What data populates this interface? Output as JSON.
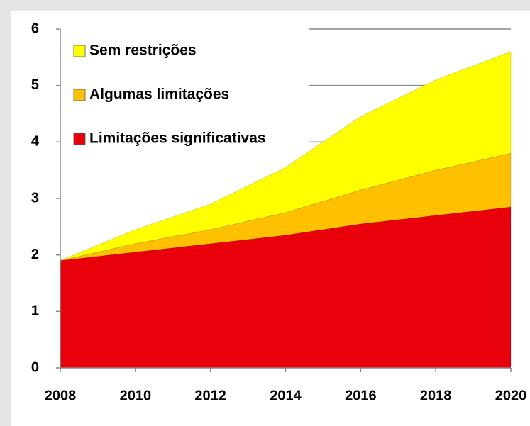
{
  "chart_data": {
    "type": "stacked_area",
    "x": [
      2008,
      2010,
      2012,
      2014,
      2016,
      2018,
      2020
    ],
    "xlim": [
      2008,
      2020
    ],
    "xticks": [
      2008,
      2010,
      2012,
      2014,
      2016,
      2018,
      2020
    ],
    "ylim": [
      0,
      6
    ],
    "yticks": [
      0,
      1,
      2,
      3,
      4,
      5,
      6
    ],
    "grid": true,
    "legend": "upper left",
    "series": [
      {
        "name": "Limitações significativas",
        "color": "#e8000a",
        "values": [
          1.9,
          2.05,
          2.2,
          2.35,
          2.55,
          2.7,
          2.85
        ]
      },
      {
        "name": "Algumas limitações",
        "color": "#ffc000",
        "values": [
          0,
          0.15,
          0.25,
          0.4,
          0.6,
          0.8,
          0.95
        ]
      },
      {
        "name": "Sem restrições",
        "color": "#ffff00",
        "values": [
          0,
          0.25,
          0.45,
          0.8,
          1.3,
          1.6,
          1.8
        ]
      }
    ]
  }
}
